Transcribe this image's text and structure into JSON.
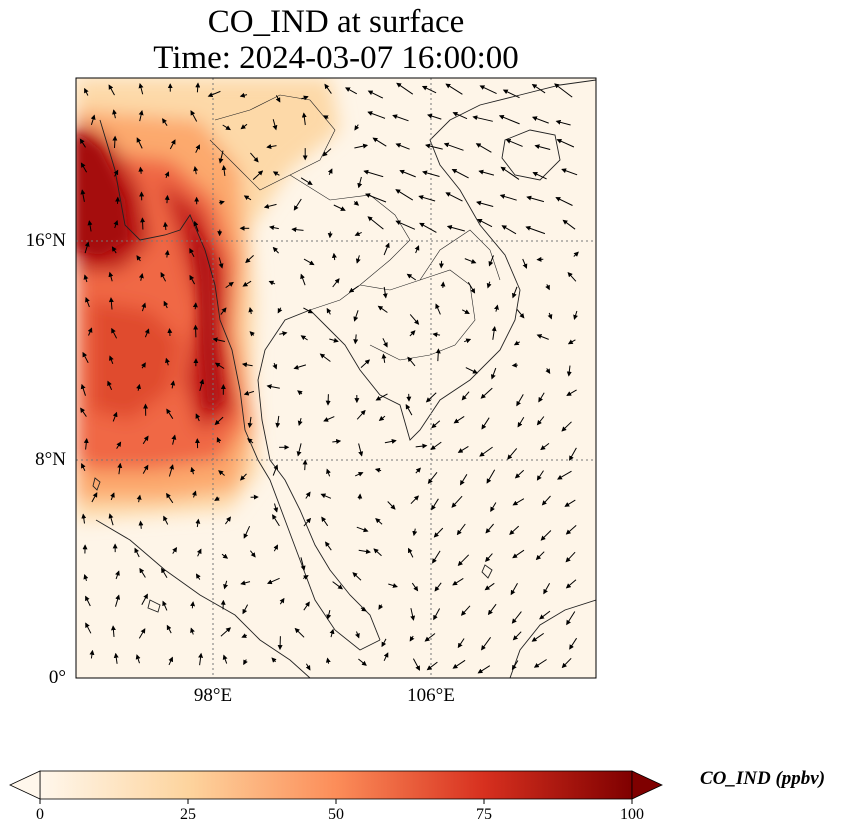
{
  "title": {
    "line1": "CO_IND at surface",
    "line2": "Time: 2024-03-07 16:00:00"
  },
  "map": {
    "lon_range": [
      94,
      113
    ],
    "lat_range": [
      0,
      22
    ],
    "lat_ticks": [
      {
        "value": 16,
        "label": "16°N"
      },
      {
        "value": 8,
        "label": "8°N"
      },
      {
        "value": 0,
        "label": "0°"
      }
    ],
    "lon_ticks": [
      {
        "value": 98,
        "label": "98°E"
      },
      {
        "value": 106,
        "label": "106°E"
      }
    ],
    "gridlines": "dotted",
    "field": "CO_IND",
    "vectors": "wind arrows",
    "high_concentration_region": "west of Myanmar coast (Andaman Sea / Bay of Bengal)"
  },
  "colorbar": {
    "min": 0,
    "max": 100,
    "ticks": [
      "0",
      "25",
      "50",
      "75",
      "100"
    ],
    "label": "CO_IND (ppbv)",
    "colormap": "OrRd",
    "colors": [
      "#fff7ec",
      "#fdd49e",
      "#fc8d59",
      "#d7301f",
      "#7f0000"
    ],
    "extend": "both"
  }
}
